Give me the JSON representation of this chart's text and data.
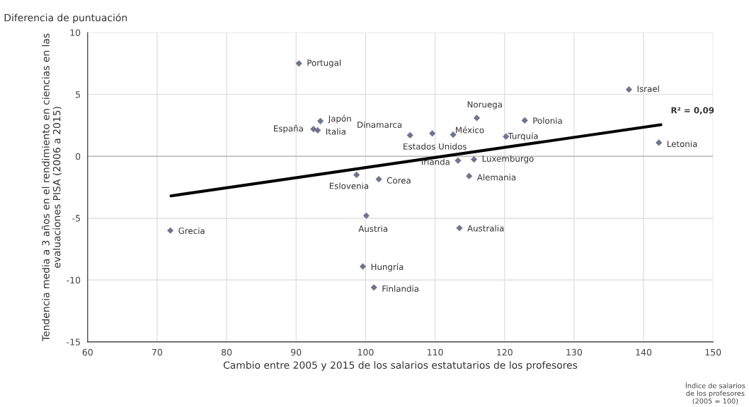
{
  "chart_data": {
    "type": "scatter",
    "title": "Diferencia de puntuación",
    "xlabel": "Cambio entre 2005 y 2015 de los salarios estatutarios de los profesores",
    "ylabel": "Tendencia media a 3 años en el rendimiento en ciencias en las evaluaciones PISA (2006 a 2015)",
    "series": [
      {
        "color": "#6f7590",
        "marker": "diamond",
        "x": [
          90.4,
          93.5,
          92.5,
          93.1,
          106.4,
          109.6,
          112.6,
          116.0,
          122.9,
          120.2,
          137.9,
          142.2,
          115.6,
          113.3,
          114.9,
          101.9,
          98.7,
          100.1,
          71.9,
          99.6,
          101.2,
          113.5
        ],
        "values": [
          7.5,
          2.85,
          2.2,
          2.1,
          1.7,
          1.85,
          1.75,
          3.1,
          2.9,
          1.6,
          5.4,
          1.1,
          -0.25,
          -0.35,
          -1.6,
          -1.85,
          -1.5,
          -4.8,
          -6.0,
          -8.9,
          -10.6,
          -5.8
        ]
      },
      {
        "type": "line",
        "color": "#000000",
        "line_style": "solid",
        "x": [
          72,
          142.5
        ],
        "values": [
          -3.2,
          2.55
        ]
      }
    ],
    "annotations": [
      {
        "text": "Portugal",
        "x": 90.4,
        "y": 7.5
      },
      {
        "text": "Japón",
        "x": 93.5,
        "y": 2.85
      },
      {
        "text": "España",
        "x": 92.5,
        "y": 2.2
      },
      {
        "text": "Italia",
        "x": 93.1,
        "y": 2.1
      },
      {
        "text": "Dinamarca",
        "x": 106.4,
        "y": 1.7
      },
      {
        "text": "Estados Unidos",
        "x": 109.6,
        "y": 1.85
      },
      {
        "text": "México",
        "x": 112.6,
        "y": 1.75
      },
      {
        "text": "Noruega",
        "x": 116.0,
        "y": 3.1
      },
      {
        "text": "Polonia",
        "x": 122.9,
        "y": 2.9
      },
      {
        "text": "Turquía",
        "x": 120.2,
        "y": 1.6
      },
      {
        "text": "Israel",
        "x": 137.9,
        "y": 5.4
      },
      {
        "text": "Letonia",
        "x": 142.2,
        "y": 1.1
      },
      {
        "text": "Luxemburgo",
        "x": 115.6,
        "y": -0.25
      },
      {
        "text": "Irlanda",
        "x": 113.3,
        "y": -0.35
      },
      {
        "text": "Alemania",
        "x": 114.9,
        "y": -1.6
      },
      {
        "text": "Corea",
        "x": 101.9,
        "y": -1.85
      },
      {
        "text": "Eslovenia",
        "x": 98.7,
        "y": -1.5
      },
      {
        "text": "Austria",
        "x": 100.1,
        "y": -4.8
      },
      {
        "text": "Grecia",
        "x": 71.9,
        "y": -6.0
      },
      {
        "text": "Hungría",
        "x": 99.6,
        "y": -8.9
      },
      {
        "text": "Finlandia",
        "x": 101.2,
        "y": -10.6
      },
      {
        "text": "Australia",
        "x": 113.5,
        "y": -5.8
      },
      {
        "text": "R² = 0,09",
        "x": 142.5,
        "y": 2.55
      },
      "Índice de salarios de los profesores (2005 = 100)"
    ],
    "xlim": [
      60,
      150
    ],
    "xticks": [
      60,
      70,
      80,
      90,
      100,
      110,
      120,
      130,
      140,
      150
    ],
    "ylim": [
      -15,
      10
    ],
    "yticks": [
      -15,
      -10,
      -5,
      0,
      5,
      10
    ],
    "grid": true
  }
}
